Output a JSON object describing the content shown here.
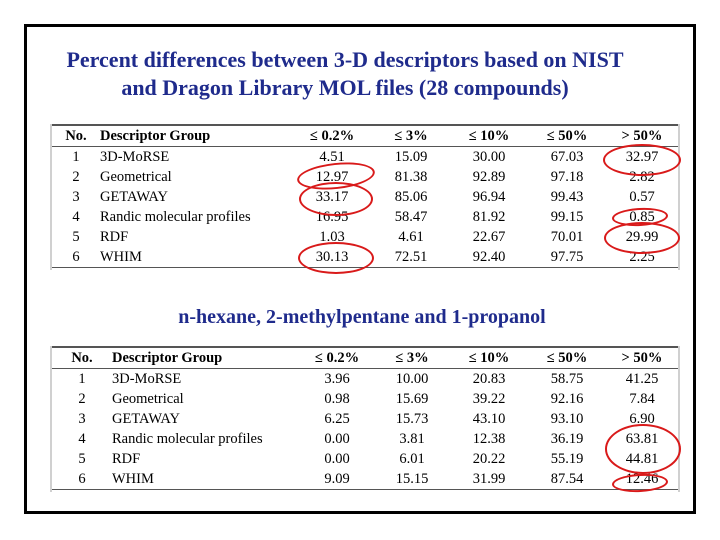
{
  "title_line1": "Percent differences between 3-D descriptors based on NIST",
  "title_line2": "and Dragon Library MOL files (28 compounds)",
  "subtitle": "n-hexane, 2-methylpentane and 1-propanol",
  "headers": {
    "no": "No.",
    "group": "Descriptor Group",
    "c1": "≤ 0.2%",
    "c2": "≤ 3%",
    "c3": "≤  10%",
    "c4": "≤  50%",
    "c5": ">  50%"
  },
  "table1": {
    "rows": [
      {
        "no": "1",
        "group": "3D-MoRSE",
        "c1": "4.51",
        "c2": "15.09",
        "c3": "30.00",
        "c4": "67.03",
        "c5": "32.97"
      },
      {
        "no": "2",
        "group": "Geometrical",
        "c1": "12.97",
        "c2": "81.38",
        "c3": "92.89",
        "c4": "97.18",
        "c5": "2.82"
      },
      {
        "no": "3",
        "group": "GETAWAY",
        "c1": "33.17",
        "c2": "85.06",
        "c3": "96.94",
        "c4": "99.43",
        "c5": "0.57"
      },
      {
        "no": "4",
        "group": "Randic molecular profiles",
        "c1": "16.95",
        "c2": "58.47",
        "c3": "81.92",
        "c4": "99.15",
        "c5": "0.85"
      },
      {
        "no": "5",
        "group": "RDF",
        "c1": "1.03",
        "c2": "4.61",
        "c3": "22.67",
        "c4": "70.01",
        "c5": "29.99"
      },
      {
        "no": "6",
        "group": "WHIM",
        "c1": "30.13",
        "c2": "72.51",
        "c3": "92.40",
        "c4": "97.75",
        "c5": "2.25"
      }
    ]
  },
  "table2": {
    "rows": [
      {
        "no": "1",
        "group": "3D-MoRSE",
        "c1": "3.96",
        "c2": "10.00",
        "c3": "20.83",
        "c4": "58.75",
        "c5": "41.25"
      },
      {
        "no": "2",
        "group": "Geometrical",
        "c1": "0.98",
        "c2": "15.69",
        "c3": "39.22",
        "c4": "92.16",
        "c5": "7.84"
      },
      {
        "no": "3",
        "group": "GETAWAY",
        "c1": "6.25",
        "c2": "15.73",
        "c3": "43.10",
        "c4": "93.10",
        "c5": "6.90"
      },
      {
        "no": "4",
        "group": "Randic molecular profiles",
        "c1": "0.00",
        "c2": "3.81",
        "c3": "12.38",
        "c4": "36.19",
        "c5": "63.81"
      },
      {
        "no": "5",
        "group": "RDF",
        "c1": "0.00",
        "c2": "6.01",
        "c3": "20.22",
        "c4": "55.19",
        "c5": "44.81"
      },
      {
        "no": "6",
        "group": "WHIM",
        "c1": "9.09",
        "c2": "15.15",
        "c3": "31.99",
        "c4": "87.54",
        "c5": "12.46"
      }
    ]
  },
  "colors": {
    "title": "#1f2b8c",
    "highlight_ring": "#d91a1a",
    "table_shade": "#d0d0d0"
  }
}
